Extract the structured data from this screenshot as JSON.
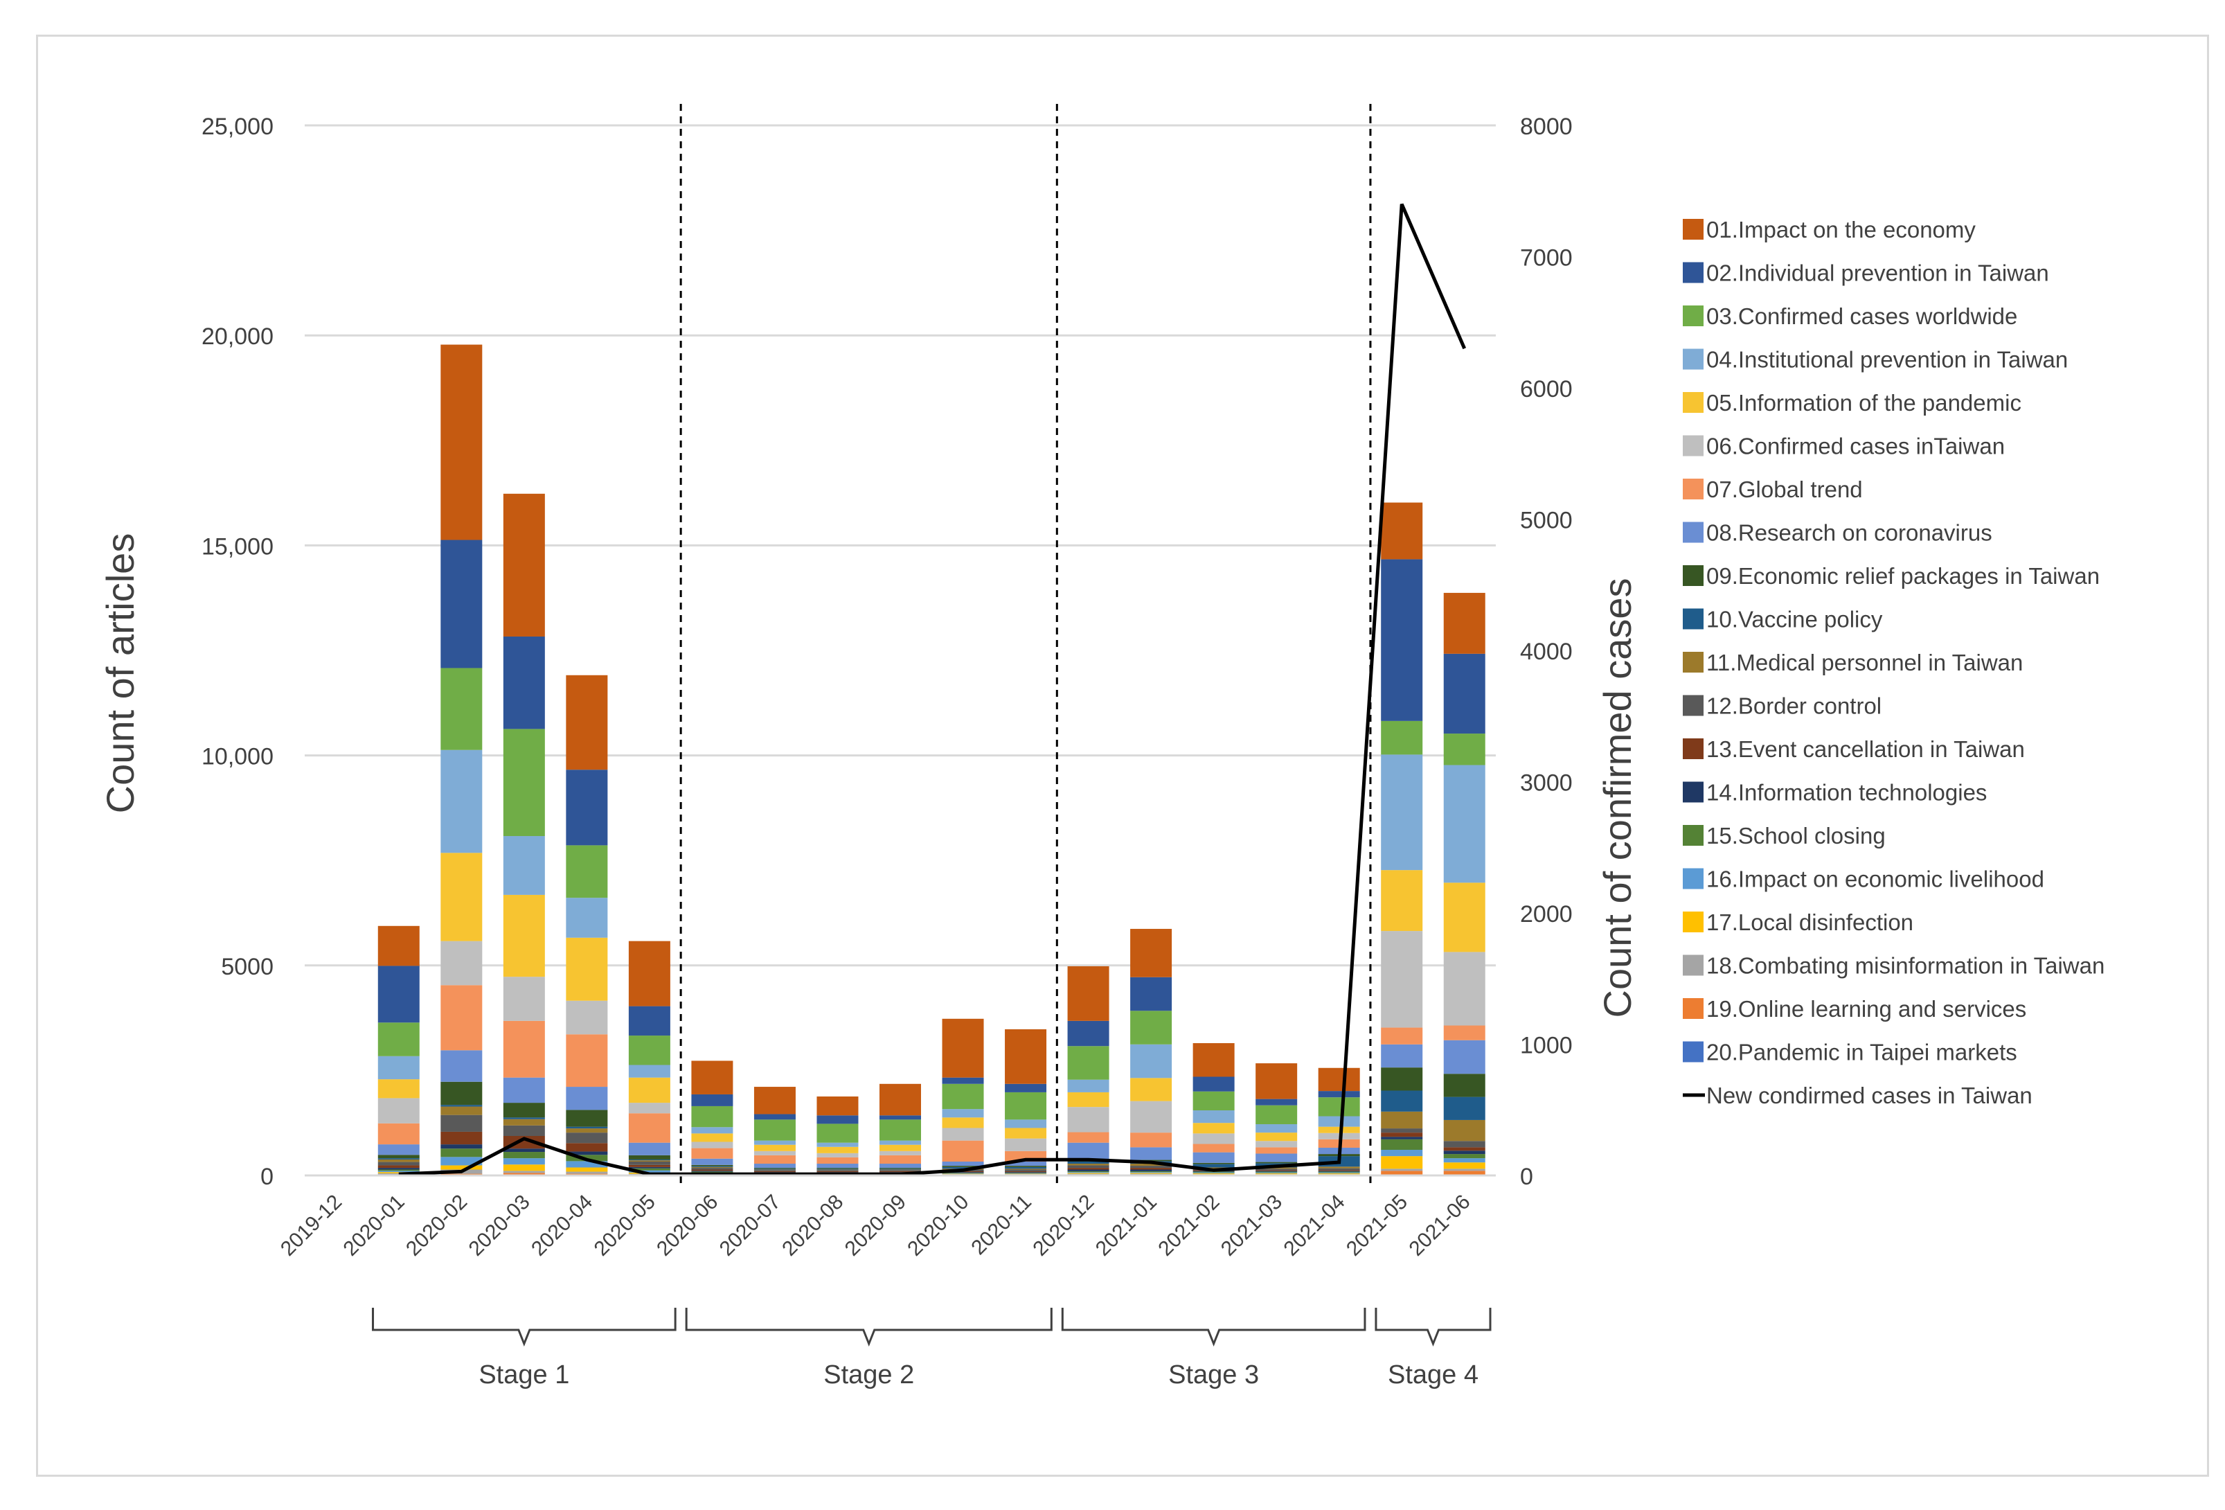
{
  "chart_data": {
    "type": "bar",
    "stacked": true,
    "categories": [
      "2019-12",
      "2020-01",
      "2020-02",
      "2020-03",
      "2020-04",
      "2020-05",
      "2020-06",
      "2020-07",
      "2020-08",
      "2020-09",
      "2020-10",
      "2020-11",
      "2020-12",
      "2021-01",
      "2021-02",
      "2021-03",
      "2021-04",
      "2021-05",
      "2021-06"
    ],
    "ylabel": "Count of articles",
    "y2label": "Count of confirmed cases",
    "ylim": [
      0,
      25000
    ],
    "y2lim": [
      0,
      8000
    ],
    "y_ticks": [
      "0",
      "5000",
      "10,000",
      "15,000",
      "20,000",
      "25,000"
    ],
    "y_tick_values": [
      0,
      5000,
      10000,
      15000,
      20000,
      25000
    ],
    "y2_ticks": [
      "0",
      "1000",
      "2000",
      "3000",
      "4000",
      "5000",
      "6000",
      "7000",
      "8000"
    ],
    "y2_tick_values": [
      0,
      1000,
      2000,
      3000,
      4000,
      5000,
      6000,
      7000,
      8000
    ],
    "grid": true,
    "legend_position": "right",
    "series": [
      {
        "name": "01.Impact on the economy",
        "color": "#c55a11",
        "values": [
          0,
          950,
          4650,
          3400,
          2250,
          1550,
          800,
          650,
          450,
          750,
          1400,
          1300,
          1300,
          1150,
          800,
          850,
          550,
          1350,
          1450
        ]
      },
      {
        "name": "02.Individual prevention in Taiwan",
        "color": "#2f5597",
        "values": [
          0,
          1350,
          3050,
          2200,
          1800,
          700,
          280,
          130,
          200,
          100,
          150,
          200,
          600,
          800,
          350,
          150,
          150,
          3850,
          1900
        ]
      },
      {
        "name": "03.Confirmed cases worldwide",
        "color": "#70ad47",
        "values": [
          0,
          800,
          1950,
          2550,
          1250,
          700,
          500,
          500,
          450,
          500,
          600,
          650,
          800,
          800,
          450,
          450,
          450,
          800,
          750
        ]
      },
      {
        "name": "04.Institutional prevention in Taiwan",
        "color": "#7facd6",
        "values": [
          0,
          550,
          2450,
          1400,
          950,
          300,
          150,
          100,
          100,
          100,
          200,
          200,
          300,
          800,
          300,
          200,
          250,
          2750,
          2800
        ]
      },
      {
        "name": "05.Information of the pandemic",
        "color": "#f7c431",
        "values": [
          0,
          450,
          2100,
          1950,
          1500,
          600,
          200,
          150,
          150,
          150,
          250,
          250,
          350,
          550,
          250,
          200,
          150,
          1450,
          1650
        ]
      },
      {
        "name": "06.Confirmed cases inTaiwan",
        "color": "#bfbfbf",
        "values": [
          0,
          600,
          1050,
          1050,
          800,
          250,
          150,
          100,
          100,
          100,
          300,
          300,
          600,
          750,
          250,
          150,
          150,
          2300,
          1750
        ]
      },
      {
        "name": "07.Global trend",
        "color": "#f4925b",
        "values": [
          0,
          500,
          1550,
          1350,
          1250,
          700,
          250,
          200,
          150,
          200,
          500,
          250,
          250,
          350,
          200,
          150,
          200,
          400,
          350
        ]
      },
      {
        "name": "08.Research on coronavirus",
        "color": "#6a8ed3",
        "values": [
          0,
          250,
          750,
          600,
          550,
          300,
          150,
          100,
          100,
          100,
          100,
          100,
          400,
          300,
          250,
          200,
          150,
          550,
          800
        ]
      },
      {
        "name": "09.Economic relief packages in Taiwan",
        "color": "#375623",
        "values": [
          0,
          80,
          550,
          350,
          400,
          100,
          30,
          20,
          20,
          20,
          30,
          30,
          50,
          30,
          30,
          30,
          50,
          550,
          550
        ]
      },
      {
        "name": "10.Vaccine policy",
        "color": "#1f5c8b",
        "values": [
          0,
          30,
          40,
          40,
          40,
          20,
          20,
          20,
          20,
          20,
          40,
          40,
          50,
          60,
          80,
          100,
          250,
          500,
          550
        ]
      },
      {
        "name": "11.Medical personnel in Taiwan",
        "color": "#9c7a2b",
        "values": [
          0,
          60,
          200,
          150,
          100,
          30,
          20,
          10,
          10,
          10,
          20,
          20,
          40,
          50,
          30,
          30,
          40,
          400,
          500
        ]
      },
      {
        "name": "12.Border control",
        "color": "#595959",
        "values": [
          0,
          80,
          400,
          250,
          250,
          80,
          40,
          30,
          30,
          30,
          40,
          40,
          60,
          50,
          30,
          30,
          40,
          100,
          150
        ]
      },
      {
        "name": "13.Event cancellation in Taiwan",
        "color": "#7f3a1a",
        "values": [
          0,
          60,
          300,
          300,
          200,
          50,
          30,
          20,
          20,
          20,
          20,
          20,
          40,
          40,
          20,
          20,
          20,
          100,
          80
        ]
      },
      {
        "name": "14.Information technologies",
        "color": "#1f3864",
        "values": [
          0,
          40,
          100,
          80,
          80,
          30,
          20,
          20,
          20,
          20,
          20,
          20,
          40,
          40,
          20,
          20,
          20,
          60,
          80
        ]
      },
      {
        "name": "15.School closing",
        "color": "#548235",
        "values": [
          0,
          30,
          200,
          150,
          150,
          50,
          20,
          10,
          10,
          10,
          10,
          10,
          20,
          20,
          20,
          20,
          20,
          250,
          100
        ]
      },
      {
        "name": "16.Impact on economic livelihood",
        "color": "#5b9bd5",
        "values": [
          0,
          30,
          200,
          150,
          150,
          50,
          20,
          10,
          10,
          10,
          10,
          10,
          20,
          20,
          20,
          20,
          20,
          150,
          100
        ]
      },
      {
        "name": "17.Local disinfection",
        "color": "#ffc000",
        "values": [
          0,
          30,
          100,
          150,
          100,
          30,
          20,
          10,
          10,
          10,
          10,
          10,
          20,
          20,
          20,
          20,
          20,
          300,
          150
        ]
      },
      {
        "name": "18.Combating misinformation in Taiwan",
        "color": "#a5a5a5",
        "values": [
          0,
          30,
          100,
          50,
          50,
          20,
          10,
          10,
          10,
          10,
          10,
          10,
          20,
          20,
          10,
          10,
          10,
          50,
          50
        ]
      },
      {
        "name": "19.Online learning and services",
        "color": "#ed7d31",
        "values": [
          0,
          10,
          30,
          50,
          30,
          10,
          10,
          10,
          10,
          10,
          10,
          10,
          10,
          10,
          10,
          10,
          10,
          100,
          100
        ]
      },
      {
        "name": "20.Pandemic in Taipei markets",
        "color": "#4472c4",
        "values": [
          0,
          10,
          10,
          10,
          10,
          10,
          10,
          10,
          10,
          10,
          10,
          10,
          10,
          10,
          10,
          10,
          10,
          10,
          10
        ]
      }
    ],
    "line": {
      "name": "New condirmed cases in Taiwan",
      "color": "#000000",
      "axis": "secondary",
      "values": [
        null,
        10,
        30,
        280,
        120,
        10,
        10,
        10,
        10,
        10,
        40,
        120,
        120,
        100,
        40,
        70,
        100,
        7400,
        6300
      ]
    },
    "stages": [
      {
        "label": "Stage 1",
        "from": "2020-01",
        "to": "2020-05"
      },
      {
        "label": "Stage 2",
        "from": "2020-06",
        "to": "2020-11"
      },
      {
        "label": "Stage 3",
        "from": "2020-12",
        "to": "2021-04"
      },
      {
        "label": "Stage 4",
        "from": "2021-05",
        "to": "2021-06"
      }
    ]
  }
}
